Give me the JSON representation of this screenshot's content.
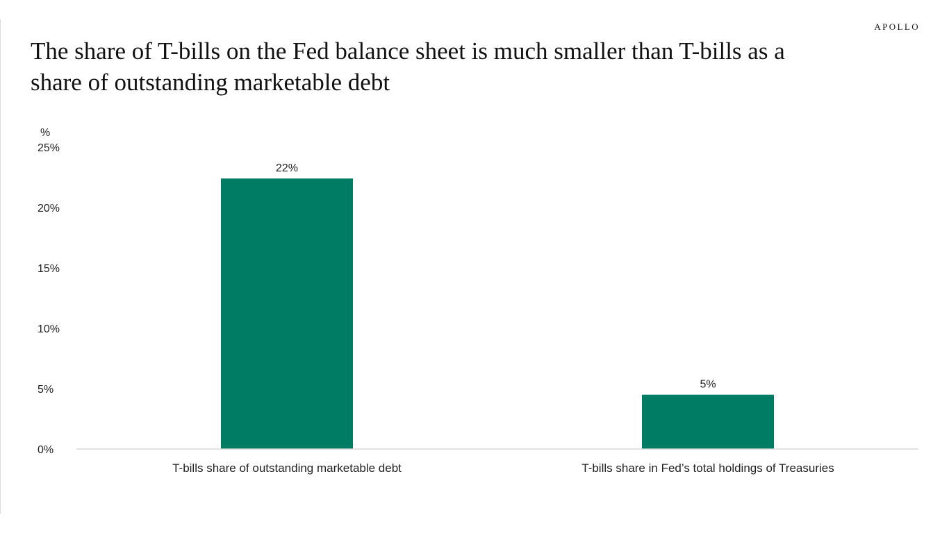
{
  "brand": "APOLLO",
  "title": {
    "line1": "The share of T-bills on the Fed balance sheet is much smaller than T-bills as a",
    "line2": "share of outstanding marketable debt"
  },
  "colors": {
    "bar": "#007c64",
    "axis": "#d9d9d9"
  },
  "chart_data": {
    "type": "bar",
    "categories": [
      "T-bills share of outstanding marketable debt",
      "T-bills share in Fed’s total holdings of Treasuries"
    ],
    "values": [
      22.4,
      4.5
    ],
    "data_labels": [
      "22%",
      "5%"
    ],
    "ylabel": "%",
    "ylim": [
      0,
      25
    ],
    "yticks": [
      0,
      5,
      10,
      15,
      20,
      25
    ],
    "ytick_labels": [
      "0%",
      "5%",
      "10%",
      "15%",
      "20%",
      "25%"
    ],
    "grid": false,
    "legend": "none"
  }
}
